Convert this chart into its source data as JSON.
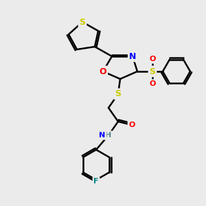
{
  "bg_color": "#ebebeb",
  "bond_color": "#000000",
  "bond_width": 1.8,
  "atom_colors": {
    "S": "#cccc00",
    "O": "#ff0000",
    "N": "#0000ff",
    "F": "#008888",
    "C": "#000000",
    "H": "#777777"
  },
  "font_size": 8
}
